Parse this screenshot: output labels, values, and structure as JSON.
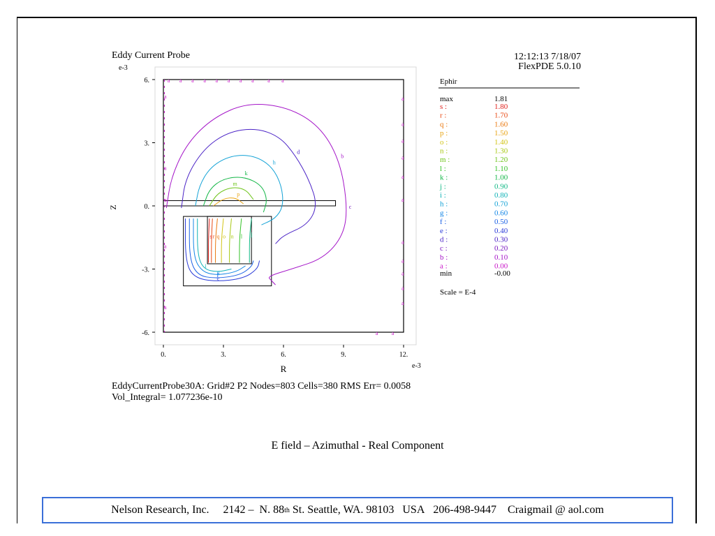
{
  "header": {
    "title": "Eddy Current Probe",
    "timestamp": "12:12:13 7/18/07",
    "software": "FlexPDE 5.0.10"
  },
  "chart_data": {
    "type": "contour",
    "title": "Eddy Current Probe",
    "xlabel": "R",
    "ylabel": "Z",
    "x_exponent": "e-3",
    "y_exponent": "e-3",
    "xlim": [
      0,
      12
    ],
    "ylim": [
      -6,
      6
    ],
    "x_ticks": [
      "0.",
      "3.",
      "6.",
      "9.",
      "12."
    ],
    "x_tick_values": [
      0,
      3,
      6,
      9,
      12
    ],
    "y_ticks": [
      "6.",
      "3.",
      "0.",
      "-3.",
      "-6."
    ],
    "y_tick_values": [
      6,
      3,
      0,
      -3,
      -6
    ],
    "variable": "Ephir",
    "max_label": "max",
    "max_value": "1.81",
    "min_label": "min",
    "min_value": "-0.00",
    "scale": "Scale = E-4",
    "levels": [
      {
        "label": "s",
        "value": "1.80",
        "color": "#e0201c"
      },
      {
        "label": "r",
        "value": "1.70",
        "color": "#e84a14"
      },
      {
        "label": "q",
        "value": "1.60",
        "color": "#ea7a12"
      },
      {
        "label": "p",
        "value": "1.50",
        "color": "#e8a414"
      },
      {
        "label": "o",
        "value": "1.40",
        "color": "#d2c416"
      },
      {
        "label": "n",
        "value": "1.30",
        "color": "#a8c814"
      },
      {
        "label": "m",
        "value": "1.20",
        "color": "#6ec41a"
      },
      {
        "label": "l",
        "value": "1.10",
        "color": "#34c228"
      },
      {
        "label": "k",
        "value": "1.00",
        "color": "#12b646"
      },
      {
        "label": "j",
        "value": "0.90",
        "color": "#10b884"
      },
      {
        "label": "i",
        "value": "0.80",
        "color": "#10b2b6"
      },
      {
        "label": "h",
        "value": "0.70",
        "color": "#12a2d6"
      },
      {
        "label": "g",
        "value": "0.60",
        "color": "#1486e6"
      },
      {
        "label": "f",
        "value": "0.50",
        "color": "#1a60e6"
      },
      {
        "label": "e",
        "value": "0.40",
        "color": "#2a3ad8"
      },
      {
        "label": "d",
        "value": "0.30",
        "color": "#4a22c6"
      },
      {
        "label": "c",
        "value": "0.20",
        "color": "#7a18c0"
      },
      {
        "label": "b",
        "value": "0.10",
        "color": "#a414c8"
      },
      {
        "label": "a",
        "value": "0.00",
        "color": "#c814c8"
      }
    ],
    "geometry": {
      "outer_box": {
        "r0": 0,
        "r1": 12,
        "z0": -6,
        "z1": 6
      },
      "plate": {
        "r0": 0,
        "r1": 8.6,
        "z0": 0,
        "z1": 0.25
      },
      "coil_outer": {
        "r0": 1,
        "r1": 5.4,
        "z0": -3.8,
        "z1": -0.5
      },
      "coil_inner": {
        "r0": 2.2,
        "r1": 4.4,
        "z0": -2.75,
        "z1": -0.5
      }
    },
    "contour_lines": [
      {
        "label": "b",
        "color": "#a414c8",
        "points": [
          [
            0.15,
            -0.1
          ],
          [
            0.4,
            1.4
          ],
          [
            1.2,
            3.0
          ],
          [
            2.5,
            4.2
          ],
          [
            4.2,
            4.9
          ],
          [
            6.2,
            4.7
          ],
          [
            7.8,
            3.8
          ],
          [
            8.8,
            2.2
          ],
          [
            9.2,
            0.0
          ],
          [
            9.0,
            -1.4
          ],
          [
            8.0,
            -2.5
          ],
          [
            6.4,
            -3.0
          ],
          [
            5.2,
            -3.35
          ],
          [
            5.4,
            -3.55
          ],
          [
            5.6,
            -3.75
          ]
        ]
      },
      {
        "label": "d",
        "color": "#4a22c6",
        "points": [
          [
            0.9,
            -0.1
          ],
          [
            1.1,
            1.3
          ],
          [
            2.0,
            2.7
          ],
          [
            3.2,
            3.5
          ],
          [
            4.6,
            3.7
          ],
          [
            5.8,
            3.3
          ],
          [
            6.6,
            2.4
          ],
          [
            7.3,
            1.2
          ],
          [
            7.7,
            0.0
          ],
          [
            7.2,
            -0.9
          ],
          [
            6.0,
            -1.4
          ],
          [
            5.6,
            -1.8
          ]
        ]
      },
      {
        "label": "h",
        "color": "#12a2d6",
        "points": [
          [
            1.6,
            0.0
          ],
          [
            1.8,
            1.0
          ],
          [
            2.4,
            1.9
          ],
          [
            3.4,
            2.4
          ],
          [
            4.5,
            2.4
          ],
          [
            5.4,
            1.9
          ],
          [
            5.9,
            1.0
          ],
          [
            6.0,
            0.0
          ],
          [
            5.6,
            -0.6
          ],
          [
            4.9,
            -0.9
          ]
        ]
      },
      {
        "label": "k",
        "color": "#12b646",
        "points": [
          [
            2.0,
            0.0
          ],
          [
            2.3,
            0.8
          ],
          [
            3.0,
            1.3
          ],
          [
            4.0,
            1.4
          ],
          [
            4.9,
            1.0
          ],
          [
            5.2,
            0.3
          ],
          [
            5.0,
            -0.3
          ]
        ]
      },
      {
        "label": "m",
        "color": "#6ec41a",
        "points": [
          [
            2.3,
            0.0
          ],
          [
            2.7,
            0.6
          ],
          [
            3.4,
            0.9
          ],
          [
            4.1,
            0.8
          ],
          [
            4.5,
            0.3
          ]
        ]
      },
      {
        "label": "p",
        "color": "#e8a414",
        "points": [
          [
            2.5,
            0.0
          ],
          [
            3.0,
            0.35
          ],
          [
            3.6,
            0.4
          ],
          [
            4.0,
            0.1
          ]
        ]
      },
      {
        "label": "c",
        "color": "#7a18c0",
        "points": [
          [
            9.2,
            0.0
          ]
        ]
      },
      {
        "label": "e",
        "color": "#2a3ad8",
        "points": [
          [
            1.1,
            -0.6
          ],
          [
            1.1,
            -2.6
          ],
          [
            1.5,
            -3.4
          ],
          [
            2.6,
            -3.6
          ],
          [
            4.0,
            -3.45
          ],
          [
            4.7,
            -3.0
          ],
          [
            4.8,
            -2.6
          ]
        ]
      },
      {
        "label": "f",
        "color": "#1a60e6",
        "points": [
          [
            1.3,
            -0.6
          ],
          [
            1.3,
            -2.5
          ],
          [
            1.7,
            -3.3
          ],
          [
            2.6,
            -3.45
          ],
          [
            3.8,
            -3.3
          ],
          [
            4.4,
            -2.9
          ],
          [
            4.5,
            -2.6
          ]
        ]
      },
      {
        "label": "g",
        "color": "#1486e6",
        "points": [
          [
            1.5,
            -0.6
          ],
          [
            1.5,
            -2.4
          ],
          [
            1.9,
            -3.1
          ],
          [
            2.6,
            -3.3
          ],
          [
            3.6,
            -3.15
          ],
          [
            4.1,
            -2.85
          ]
        ]
      },
      {
        "label": "i",
        "color": "#10b2b6",
        "points": [
          [
            1.7,
            -0.6
          ],
          [
            1.7,
            -2.3
          ],
          [
            2.0,
            -3.0
          ],
          [
            2.7,
            -3.15
          ],
          [
            3.4,
            -3.0
          ]
        ]
      },
      {
        "label": "j",
        "color": "#10b884",
        "points": [
          [
            4.4,
            -0.6
          ],
          [
            4.3,
            -1.5
          ],
          [
            4.3,
            -2.7
          ]
        ]
      },
      {
        "label": "l",
        "color": "#34c228",
        "points": [
          [
            3.9,
            -0.6
          ],
          [
            3.8,
            -1.6
          ],
          [
            3.8,
            -2.7
          ]
        ]
      },
      {
        "label": "n",
        "color": "#a8c814",
        "points": [
          [
            3.4,
            -0.6
          ],
          [
            3.3,
            -1.6
          ],
          [
            3.3,
            -2.7
          ]
        ]
      },
      {
        "label": "o",
        "color": "#d2c416",
        "points": [
          [
            3.0,
            -0.6
          ],
          [
            2.9,
            -1.6
          ],
          [
            2.9,
            -2.7
          ]
        ]
      },
      {
        "label": "q",
        "color": "#ea7a12",
        "points": [
          [
            2.7,
            -0.6
          ],
          [
            2.6,
            -1.6
          ],
          [
            2.6,
            -2.7
          ]
        ]
      },
      {
        "label": "r",
        "color": "#e84a14",
        "points": [
          [
            2.45,
            -0.6
          ],
          [
            2.4,
            -1.6
          ],
          [
            2.4,
            -2.7
          ]
        ]
      },
      {
        "label": "s",
        "color": "#e0201c",
        "points": [
          [
            2.3,
            -0.6
          ],
          [
            2.25,
            -1.6
          ],
          [
            2.25,
            -2.7
          ]
        ]
      }
    ],
    "boundary_labels": "a"
  },
  "stats": {
    "line1": "EddyCurrentProbe30A:  Grid#2  P2  Nodes=803  Cells=380  RMS Err= 0.0058",
    "line2": "Vol_Integral=  1.077236e-10"
  },
  "caption": "E field – Azimuthal - Real Component",
  "footer": {
    "company": "Nelson Research, Inc.",
    "address_pre": "2142 –  N. 88",
    "address_sup": "th",
    "address_post": " St. Seattle, WA. 98103   USA",
    "phone": "206-498-9447",
    "email": "Craigmail @ aol.com"
  }
}
